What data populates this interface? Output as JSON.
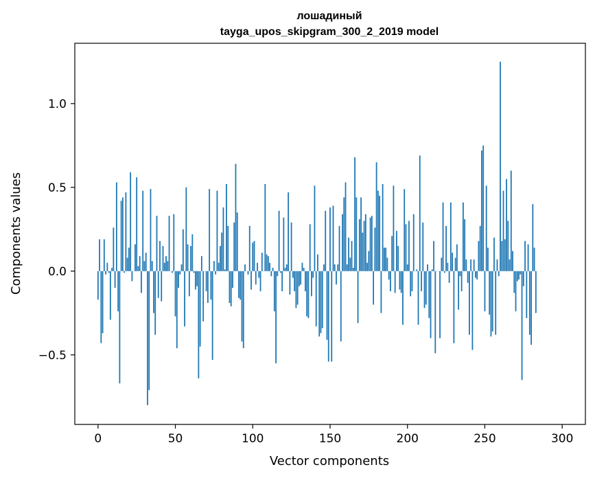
{
  "chart_data": {
    "type": "bar",
    "title": [
      "лошадиный",
      "tayga_upos_skipgram_300_2_2019 model"
    ],
    "xlabel": "Vector components",
    "ylabel": "Components values",
    "xlim": [
      -15,
      315
    ],
    "ylim": [
      -0.915,
      1.36
    ],
    "xticks": [
      0,
      50,
      100,
      150,
      200,
      250,
      300
    ],
    "xtick_labels": [
      "0",
      "50",
      "100",
      "150",
      "200",
      "250",
      "300"
    ],
    "yticks": [
      -0.5,
      0.0,
      0.5,
      1.0
    ],
    "ytick_labels": [
      "−0.5",
      "0.0",
      "0.5",
      "1.0"
    ],
    "grid": false,
    "bar_color": "#1f77b4",
    "x_start": 0,
    "values": [
      -0.17,
      0.19,
      -0.43,
      -0.37,
      0.19,
      -0.02,
      0.05,
      -0.01,
      -0.29,
      0.02,
      0.26,
      -0.1,
      0.53,
      -0.24,
      -0.67,
      0.42,
      0.44,
      -0.01,
      0.47,
      0.08,
      0.14,
      0.59,
      -0.06,
      0.0,
      0.16,
      0.56,
      0.03,
      0.09,
      -0.13,
      0.48,
      0.06,
      0.11,
      -0.8,
      -0.71,
      0.49,
      0.06,
      -0.25,
      -0.38,
      0.33,
      -0.16,
      0.18,
      -0.18,
      0.15,
      0.05,
      0.09,
      0.06,
      0.33,
      0.0,
      -0.01,
      0.34,
      -0.27,
      -0.46,
      -0.1,
      -0.02,
      0.04,
      0.25,
      -0.33,
      0.5,
      0.16,
      -0.15,
      0.15,
      0.22,
      -0.01,
      -0.11,
      -0.09,
      -0.64,
      -0.45,
      0.09,
      -0.3,
      0.0,
      -0.12,
      -0.19,
      0.49,
      -0.17,
      -0.53,
      0.06,
      -0.02,
      0.48,
      0.05,
      0.15,
      0.23,
      0.38,
      0.01,
      0.52,
      0.27,
      -0.19,
      -0.21,
      -0.1,
      0.29,
      0.64,
      0.35,
      -0.16,
      -0.17,
      -0.42,
      -0.46,
      0.04,
      0.0,
      -0.02,
      0.27,
      -0.11,
      0.17,
      0.18,
      -0.08,
      0.05,
      -0.04,
      -0.12,
      0.11,
      0.0,
      0.52,
      0.1,
      0.09,
      0.05,
      -0.03,
      0.02,
      -0.24,
      -0.55,
      -0.03,
      0.36,
      -0.01,
      -0.12,
      0.32,
      0.02,
      0.04,
      0.47,
      -0.14,
      0.29,
      -0.04,
      -0.12,
      -0.22,
      -0.2,
      -0.09,
      -0.08,
      0.05,
      0.02,
      -0.12,
      -0.27,
      -0.28,
      0.28,
      -0.15,
      -0.04,
      0.51,
      -0.33,
      0.1,
      -0.39,
      -0.37,
      -0.34,
      0.04,
      0.36,
      -0.41,
      -0.54,
      0.38,
      -0.54,
      0.39,
      0.04,
      -0.08,
      0.04,
      0.27,
      -0.42,
      0.34,
      0.44,
      0.53,
      0.04,
      0.2,
      0.08,
      0.18,
      0.02,
      0.68,
      0.44,
      -0.31,
      0.31,
      0.44,
      0.23,
      0.3,
      0.34,
      0.05,
      0.12,
      0.32,
      0.33,
      -0.2,
      0.26,
      0.65,
      0.48,
      0.45,
      -0.25,
      0.52,
      0.14,
      0.14,
      0.08,
      -0.05,
      -0.12,
      0.21,
      0.51,
      -0.13,
      0.24,
      0.15,
      -0.11,
      -0.13,
      -0.32,
      0.49,
      0.28,
      0.04,
      0.3,
      -0.15,
      -0.12,
      0.34,
      0.0,
      0.01,
      -0.32,
      0.69,
      -0.12,
      0.29,
      -0.22,
      -0.2,
      0.04,
      -0.28,
      -0.4,
      0.01,
      0.18,
      -0.49,
      0.0,
      0.0,
      -0.4,
      0.08,
      0.41,
      -0.01,
      0.27,
      0.05,
      -0.07,
      0.41,
      0.11,
      -0.43,
      0.08,
      0.16,
      -0.23,
      -0.03,
      -0.12,
      0.41,
      0.31,
      0.07,
      -0.07,
      -0.38,
      0.07,
      -0.47,
      0.07,
      -0.04,
      -0.05,
      0.18,
      0.27,
      0.72,
      0.75,
      -0.24,
      0.51,
      0.14,
      -0.26,
      -0.39,
      -0.36,
      0.2,
      -0.38,
      0.07,
      -0.03,
      1.25,
      0.18,
      0.48,
      0.19,
      0.55,
      0.3,
      0.07,
      0.6,
      0.12,
      -0.13,
      -0.24,
      -0.06,
      -0.05,
      -0.02,
      -0.65,
      -0.09,
      0.18,
      -0.28,
      0.16,
      -0.38,
      -0.44,
      0.4,
      0.14,
      -0.25
    ]
  }
}
